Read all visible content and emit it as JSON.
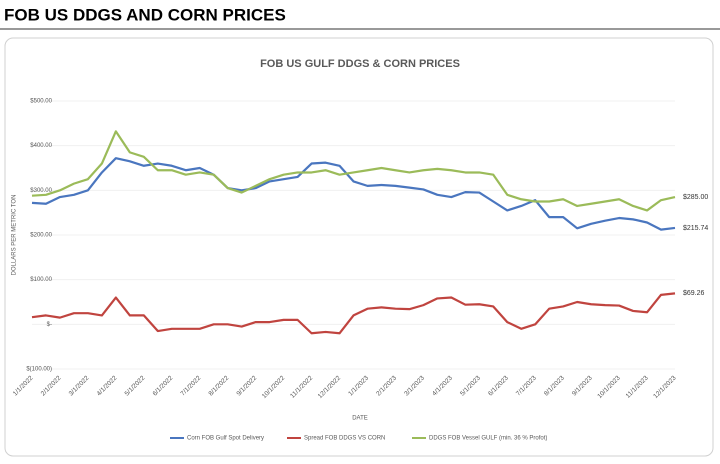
{
  "header": {
    "title": "FOB US DDGS AND CORN PRICES"
  },
  "chart_data": {
    "type": "line",
    "title": "FOB US GULF DDGS & CORN PRICES",
    "y_label": "DOLLARS PER METRIC TON",
    "x_label": "DATE",
    "categories": [
      "1/1/2022",
      null,
      "2/1/2022",
      null,
      "3/1/2022",
      null,
      "4/1/2022",
      null,
      "5/1/2022",
      null,
      "6/1/2022",
      null,
      "7/1/2022",
      null,
      "8/1/2022",
      null,
      "9/1/2022",
      null,
      "10/1/2022",
      null,
      "11/1/2022",
      null,
      "12/1/2022",
      null,
      "1/1/2023",
      null,
      "2/1/2023",
      null,
      "3/1/2023",
      null,
      "4/1/2023",
      null,
      "5/1/2023",
      null,
      "6/1/2023",
      null,
      "7/1/2023",
      null,
      "8/1/2023",
      null,
      "9/1/2023",
      null,
      "10/1/2023",
      null,
      "11/1/2023",
      null,
      "12/1/2023"
    ],
    "series": [
      {
        "name": "Corn FOB Gulf Spot Delivery",
        "color": "#4a76bf",
        "values": [
          272,
          270,
          285,
          290,
          300,
          340,
          372,
          365,
          355,
          360,
          355,
          345,
          350,
          335,
          305,
          300,
          305,
          320,
          325,
          330,
          360,
          362,
          355,
          320,
          310,
          312,
          310,
          306,
          302,
          290,
          285,
          296,
          295,
          275,
          255,
          265,
          278,
          240,
          240,
          215,
          225,
          232,
          238,
          235,
          228,
          212,
          215.74
        ],
        "value_labels": [
          null,
          null,
          null,
          null,
          null,
          null,
          null,
          null,
          null,
          null,
          null,
          null,
          null,
          null,
          null,
          null,
          null,
          null,
          null,
          null,
          null,
          null,
          null,
          null,
          null,
          null,
          null,
          null,
          null,
          null,
          null,
          null,
          null,
          null,
          null,
          null,
          null,
          null,
          null,
          null,
          null,
          null,
          null,
          null,
          null,
          null,
          "$215.74"
        ]
      },
      {
        "name": "Spread FOB DDGS VS CORN",
        "color": "#c0443f",
        "values": [
          16,
          20,
          15,
          25,
          25,
          20,
          60,
          20,
          20,
          -15,
          -10,
          -10,
          -10,
          0,
          0,
          -5,
          5,
          5,
          10,
          10,
          -20,
          -17,
          -20,
          20,
          35,
          38,
          35,
          34,
          43,
          58,
          60,
          44,
          45,
          40,
          5,
          -10,
          0,
          35,
          40,
          50,
          45,
          43,
          42,
          30,
          27,
          66,
          69.26
        ],
        "value_labels": [
          null,
          null,
          null,
          null,
          null,
          null,
          null,
          null,
          null,
          null,
          null,
          null,
          null,
          null,
          null,
          null,
          null,
          null,
          null,
          null,
          null,
          null,
          null,
          null,
          null,
          null,
          null,
          null,
          null,
          null,
          null,
          null,
          null,
          null,
          null,
          null,
          null,
          null,
          null,
          null,
          null,
          null,
          null,
          null,
          null,
          null,
          "$69.26"
        ]
      },
      {
        "name": "DDGS FOB Vessel GULF (min. 36 % Profot)",
        "color": "#9bbb59",
        "values": [
          288,
          290,
          300,
          315,
          325,
          360,
          432,
          385,
          375,
          345,
          345,
          335,
          340,
          335,
          305,
          295,
          310,
          325,
          335,
          340,
          340,
          345,
          335,
          340,
          345,
          350,
          345,
          340,
          345,
          348,
          345,
          340,
          340,
          335,
          290,
          280,
          275,
          275,
          280,
          265,
          270,
          275,
          280,
          265,
          255,
          278,
          285
        ],
        "value_labels": [
          null,
          null,
          null,
          null,
          null,
          null,
          null,
          null,
          null,
          null,
          null,
          null,
          null,
          null,
          null,
          null,
          null,
          null,
          null,
          null,
          null,
          null,
          null,
          null,
          null,
          null,
          null,
          null,
          null,
          null,
          null,
          null,
          null,
          null,
          null,
          null,
          null,
          null,
          null,
          null,
          null,
          null,
          null,
          null,
          null,
          null,
          "$285.00"
        ]
      }
    ],
    "ylim": [
      -100,
      500
    ],
    "yticks": [
      {
        "value": -100,
        "label": "$(100.00)"
      },
      {
        "value": 0,
        "label": "$-"
      },
      {
        "value": 100,
        "label": "$100.00"
      },
      {
        "value": 200,
        "label": "$200.00"
      },
      {
        "value": 300,
        "label": "$300.00"
      },
      {
        "value": 400,
        "label": "$400.00"
      },
      {
        "value": 500,
        "label": "$500.00"
      }
    ],
    "grid": true,
    "legend": "bottom"
  }
}
